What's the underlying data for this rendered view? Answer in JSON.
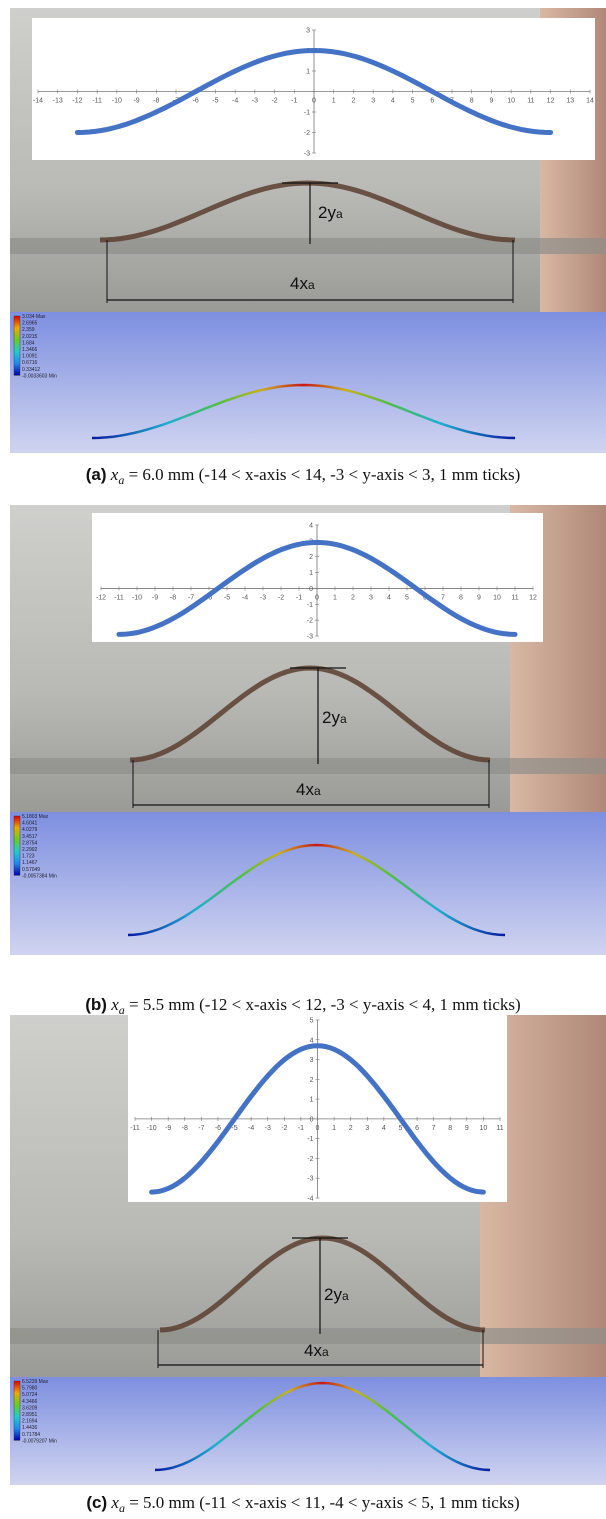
{
  "panels": [
    {
      "chart": {
        "type": "line",
        "xlim": [
          -14,
          14
        ],
        "ylim": [
          -3,
          3
        ],
        "xticks": [
          -14,
          -13,
          -12,
          -11,
          -10,
          -9,
          -8,
          -7,
          -6,
          -5,
          -4,
          -3,
          -2,
          -1,
          0,
          1,
          2,
          3,
          4,
          5,
          6,
          7,
          8,
          9,
          10,
          11,
          12,
          13,
          14
        ],
        "yticks": [
          -3,
          -2,
          -1,
          1,
          2,
          3
        ],
        "color": "#4472c4",
        "curve": {
          "amplitude": 2,
          "xa": 6.0,
          "x_start": -12,
          "x_end": 12
        }
      },
      "labels": {
        "height": "2y",
        "width": "4x",
        "sub": "a"
      },
      "legend": {
        "max": "3.034 Max",
        "levels": [
          "2.6965",
          "2.359",
          "2.0215",
          "1.684",
          "1.3466",
          "1.0091",
          "0.6716",
          "0.33412"
        ],
        "min": "-0.0033603 Min"
      },
      "caption": {
        "label": "(a)",
        "var": "x",
        "sub": "a",
        "text": " = 6.0 mm (-14 < x-axis < 14, -3 < y-axis < 3, 1 mm ticks)"
      }
    },
    {
      "chart": {
        "type": "line",
        "xlim": [
          -12,
          12
        ],
        "ylim": [
          -3,
          4
        ],
        "xticks": [
          -12,
          -11,
          -10,
          -9,
          -8,
          -7,
          -6,
          -5,
          -4,
          -3,
          -2,
          -1,
          0,
          1,
          2,
          3,
          4,
          5,
          6,
          7,
          8,
          9,
          10,
          11,
          12
        ],
        "yticks": [
          -3,
          -2,
          -1,
          0,
          1,
          2,
          3,
          4
        ],
        "color": "#4472c4",
        "curve": {
          "amplitude": 2.9,
          "xa": 5.5,
          "x_start": -11,
          "x_end": 11
        }
      },
      "labels": {
        "height": "2y",
        "width": "4x",
        "sub": "a"
      },
      "legend": {
        "max": "5.1803 Max",
        "levels": [
          "4.6041",
          "4.0279",
          "3.4517",
          "2.8754",
          "2.2992",
          "1.723",
          "1.1467",
          "0.57049"
        ],
        "min": "-0.0057384 Min"
      },
      "caption": {
        "label": "(b)",
        "var": "x",
        "sub": "a",
        "text": " = 5.5 mm (-12 < x-axis < 12, -3 < y-axis < 4, 1 mm ticks)"
      }
    },
    {
      "chart": {
        "type": "line",
        "xlim": [
          -11,
          11
        ],
        "ylim": [
          -4,
          5
        ],
        "xticks": [
          -11,
          -10,
          -9,
          -8,
          -7,
          -6,
          -5,
          -4,
          -3,
          -2,
          -1,
          0,
          1,
          2,
          3,
          4,
          5,
          6,
          7,
          8,
          9,
          10,
          11
        ],
        "yticks": [
          -4,
          -3,
          -2,
          -1,
          0,
          1,
          2,
          3,
          4,
          5
        ],
        "color": "#4472c4",
        "curve": {
          "amplitude": 3.7,
          "xa": 5.0,
          "x_start": -10,
          "x_end": 10
        }
      },
      "labels": {
        "height": "2y",
        "width": "4x",
        "sub": "a"
      },
      "legend": {
        "max": "6.5239 Max",
        "levels": [
          "5.7980",
          "5.0724",
          "4.3466",
          "3.6209",
          "2.8951",
          "2.1694",
          "1.4436",
          "0.71784"
        ],
        "min": "-0.0079207 Min"
      },
      "caption": {
        "label": "(c)",
        "var": "x",
        "sub": "a",
        "text": " = 5.0 mm (-11 < x-axis < 11, -4 < y-axis < 5, 1 mm ticks)"
      }
    }
  ]
}
